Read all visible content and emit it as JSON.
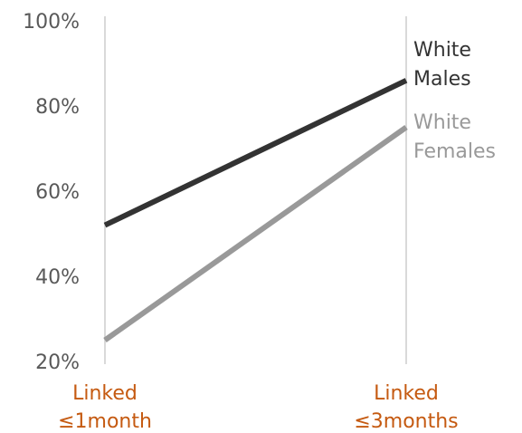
{
  "chart_data": {
    "type": "line",
    "categories": [
      "Linked ≤1month",
      "Linked ≤3months"
    ],
    "category_lines": [
      [
        "Linked",
        "≤1month"
      ],
      [
        "Linked",
        "≤3months"
      ]
    ],
    "category_color": "#C55A11",
    "yticks": [
      "100%",
      "80%",
      "60%",
      "40%",
      "20%"
    ],
    "ylim": [
      20,
      100
    ],
    "series": [
      {
        "name": "White Males",
        "name_lines": [
          "White",
          "Males"
        ],
        "values": [
          52,
          86
        ],
        "color": "#333333"
      },
      {
        "name": "White Females",
        "name_lines": [
          "White",
          "Females"
        ],
        "values": [
          25,
          75
        ],
        "color": "#999999"
      }
    ],
    "gridline_color": "#d9d9d9",
    "legend": "right"
  }
}
